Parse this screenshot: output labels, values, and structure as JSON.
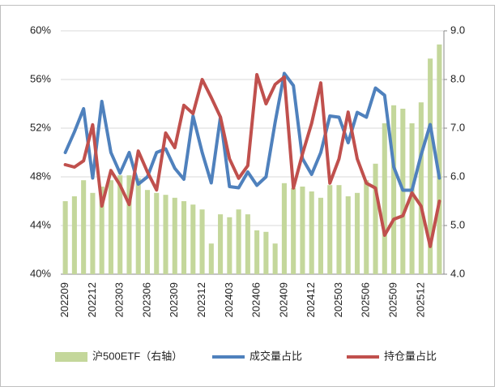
{
  "chart_data": {
    "type": "bar-line",
    "categories": [
      "202209",
      null,
      null,
      "202212",
      null,
      null,
      "202303",
      null,
      null,
      "202306",
      null,
      null,
      "202309",
      null,
      null,
      "202312",
      null,
      null,
      "202403",
      null,
      null,
      "202406",
      null,
      null,
      "202409",
      null,
      null,
      "202412",
      null,
      null,
      "202503",
      null,
      null,
      "202506",
      null,
      null,
      "202509",
      null,
      null,
      "202512",
      null,
      null
    ],
    "series": [
      {
        "name": "沪500ETF（右轴）",
        "type": "bar",
        "axis": "y2",
        "color": "#c4d79b",
        "values": [
          5.5,
          5.6,
          5.93,
          5.67,
          5.8,
          5.93,
          6.03,
          6.03,
          5.97,
          5.73,
          5.67,
          5.63,
          5.57,
          5.5,
          5.43,
          5.33,
          4.63,
          5.23,
          5.17,
          5.33,
          5.23,
          4.9,
          4.87,
          4.63,
          5.87,
          5.77,
          5.8,
          5.7,
          5.57,
          5.83,
          5.83,
          5.6,
          5.67,
          5.93,
          6.27,
          7.1,
          7.47,
          7.4,
          7.1,
          7.53,
          8.43,
          8.72
        ]
      },
      {
        "name": "成交量占比",
        "type": "line",
        "color": "#4f81bd",
        "values": [
          50.0,
          51.7,
          53.6,
          47.9,
          54.2,
          50.0,
          48.3,
          50.0,
          47.4,
          48.0,
          50.0,
          50.3,
          48.7,
          47.8,
          53.0,
          50.0,
          47.5,
          52.9,
          47.2,
          47.1,
          48.4,
          47.3,
          48.0,
          52.5,
          56.5,
          55.5,
          49.5,
          48.2,
          50.0,
          53.0,
          52.9,
          50.8,
          53.3,
          52.9,
          55.3,
          54.7,
          48.8,
          46.9,
          46.9,
          49.8,
          52.3,
          47.9
        ]
      },
      {
        "name": "持仓量占比",
        "type": "line",
        "axis": "y2",
        "color": "#c0504d",
        "values": [
          6.25,
          6.2,
          6.33,
          7.07,
          5.4,
          6.13,
          5.83,
          5.43,
          6.53,
          6.1,
          5.73,
          6.9,
          6.6,
          7.47,
          7.3,
          8.0,
          7.63,
          7.23,
          6.37,
          5.97,
          6.23,
          8.1,
          7.5,
          7.9,
          8.05,
          5.77,
          6.47,
          7.1,
          7.93,
          5.87,
          6.37,
          7.33,
          6.37,
          5.87,
          5.77,
          4.8,
          5.13,
          5.2,
          5.67,
          5.4,
          4.57,
          5.5
        ]
      }
    ],
    "ylim": [
      40,
      60
    ],
    "yticks": [
      {
        "value": 40,
        "label": "40%"
      },
      {
        "value": 44,
        "label": "44%"
      },
      {
        "value": 48,
        "label": "48%"
      },
      {
        "value": 52,
        "label": "52%"
      },
      {
        "value": 56,
        "label": "56%"
      },
      {
        "value": 60,
        "label": "60%"
      }
    ],
    "y2lim": [
      4,
      9
    ],
    "y2ticks": [
      {
        "value": 4,
        "label": "4.0"
      },
      {
        "value": 5,
        "label": "5.0"
      },
      {
        "value": 6,
        "label": "6.0"
      },
      {
        "value": 7,
        "label": "7.0"
      },
      {
        "value": 8,
        "label": "8.0"
      },
      {
        "value": 9,
        "label": "9.0"
      }
    ],
    "grid": true,
    "legend": "bottom"
  }
}
